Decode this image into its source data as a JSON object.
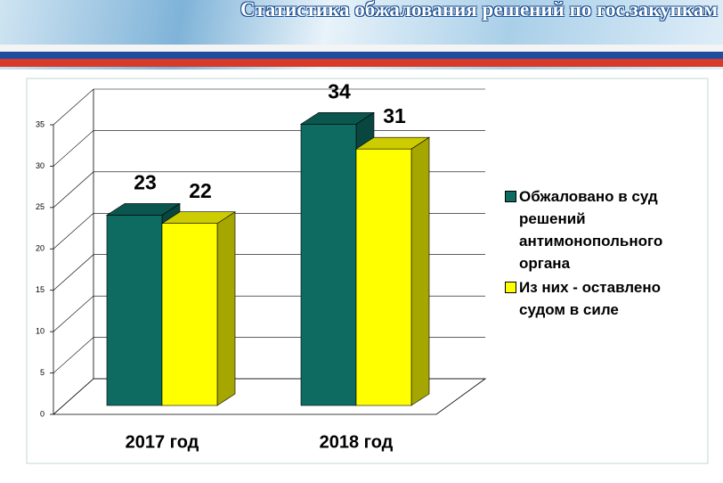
{
  "chart_data": {
    "type": "bar3d",
    "title": "Статистика обжалования решений по гос.закупкам",
    "categories": [
      "2017 год",
      "2018 год"
    ],
    "series": [
      {
        "name": "Обжаловано в суд решений антимонопольного органа",
        "color": "#0e6b62",
        "values": [
          23,
          34
        ]
      },
      {
        "name": "Из них - оставлено судом в силе",
        "color": "#ffff00",
        "values": [
          22,
          31
        ]
      }
    ],
    "ylim": [
      0,
      35
    ],
    "yticks": [
      0,
      5,
      10,
      15,
      20,
      25,
      30,
      35
    ],
    "grid": true,
    "legend": "right"
  }
}
